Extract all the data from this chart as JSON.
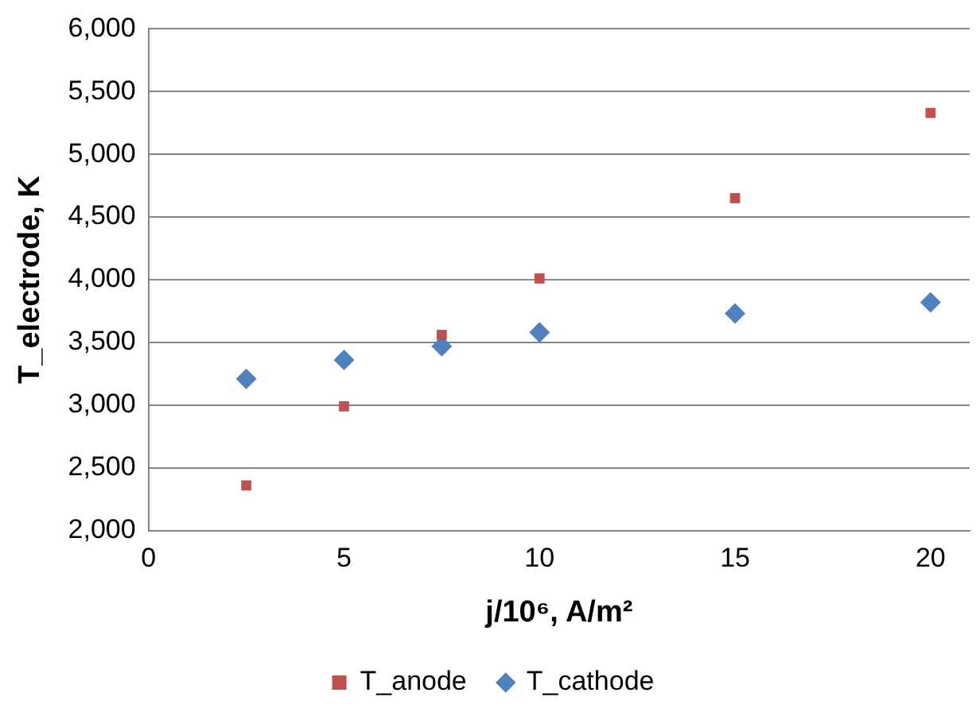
{
  "chart_data": {
    "type": "scatter",
    "xlabel": "j/10⁶, A/m²",
    "ylabel": "T_electrode, K",
    "xlim": [
      0,
      21
    ],
    "xticks": [
      0,
      5,
      10,
      15,
      20
    ],
    "ylim": [
      2000,
      6000
    ],
    "yticks": [
      {
        "value": 2000,
        "label": "2,000"
      },
      {
        "value": 2500,
        "label": "2,500"
      },
      {
        "value": 3000,
        "label": "3,000"
      },
      {
        "value": 3500,
        "label": "3,500"
      },
      {
        "value": 4000,
        "label": "4,000"
      },
      {
        "value": 4500,
        "label": "4,500"
      },
      {
        "value": 5000,
        "label": "5,000"
      },
      {
        "value": 5500,
        "label": "5,500"
      },
      {
        "value": 6000,
        "label": "6,000"
      }
    ],
    "grid": "y",
    "legend": "bottom",
    "series": [
      {
        "name": "T_anode",
        "color": "#c0504d",
        "marker": "square",
        "x": [
          2.5,
          5,
          7.5,
          10,
          15,
          20
        ],
        "values": [
          2360,
          2990,
          3560,
          4010,
          4650,
          5330
        ]
      },
      {
        "name": "T_cathode",
        "color": "#4f81bd",
        "marker": "diamond",
        "x": [
          2.5,
          5,
          7.5,
          10,
          15,
          20
        ],
        "values": [
          3210,
          3360,
          3470,
          3580,
          3730,
          3820
        ]
      }
    ]
  }
}
